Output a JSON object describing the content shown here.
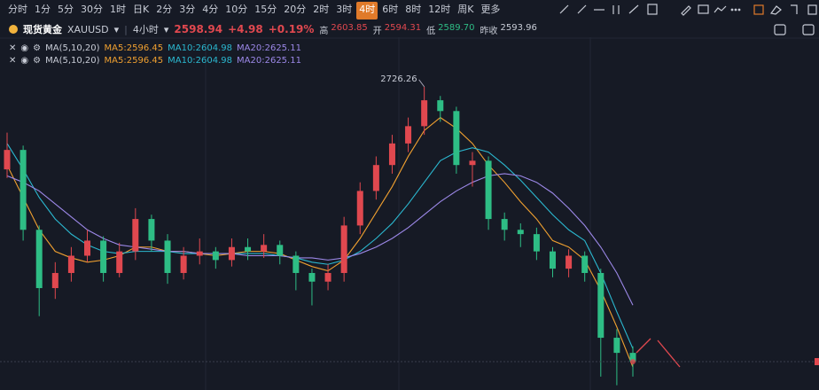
{
  "toolbar": {
    "items": [
      "分时",
      "1分",
      "5分",
      "30分",
      "1时",
      "日K",
      "2分",
      "3分",
      "4分",
      "10分",
      "15分",
      "20分",
      "2时",
      "3时",
      "4时",
      "6时",
      "8时",
      "12时",
      "周K",
      "更多"
    ],
    "active": 14
  },
  "header": {
    "name": "现货黄金",
    "symbol": "XAUUSD",
    "period": "4小时",
    "price": "2598.94",
    "change": "+4.98",
    "change_pct": "+0.19%",
    "stats": [
      {
        "label": "高",
        "value": "2603.85",
        "color": "#e0484f"
      },
      {
        "label": "开",
        "value": "2594.31",
        "color": "#e0484f"
      },
      {
        "label": "低",
        "value": "2589.70",
        "color": "#2ebd85"
      },
      {
        "label": "昨收",
        "value": "2593.96",
        "color": "#c8ccd6"
      }
    ]
  },
  "indicators": [
    {
      "name": "MA(5,10,20)",
      "items": [
        "MA5:2596.45",
        "MA10:2604.98",
        "MA20:2625.11"
      ]
    },
    {
      "name": "MA(5,10,20)",
      "items": [
        "MA5:2596.45",
        "MA10:2604.98",
        "MA20:2625.11"
      ]
    }
  ],
  "chart_data": {
    "type": "candlestick",
    "ylim": [
      2585.8,
      2749.2
    ],
    "up_color": "#e0484f",
    "down_color": "#2ebd85",
    "open": [
      2688,
      2697,
      2660,
      2633,
      2640,
      2648,
      2655,
      2640,
      2650,
      2665,
      2655,
      2640,
      2648,
      2650,
      2646,
      2652,
      2650,
      2653,
      2648,
      2640,
      2636,
      2640,
      2662,
      2678,
      2690,
      2700,
      2708,
      2720,
      2715,
      2690,
      2692,
      2665,
      2660,
      2658,
      2650,
      2642,
      2648,
      2640,
      2610,
      2603
    ],
    "high": [
      2705,
      2699,
      2662,
      2645,
      2652,
      2660,
      2657,
      2654,
      2670,
      2667,
      2658,
      2652,
      2656,
      2652,
      2656,
      2656,
      2658,
      2655,
      2650,
      2642,
      2644,
      2666,
      2682,
      2694,
      2704,
      2712,
      2726.26,
      2722,
      2717,
      2696,
      2694,
      2668,
      2663,
      2661,
      2652,
      2651,
      2650,
      2642,
      2614,
      2606
    ],
    "low": [
      2684,
      2655,
      2620,
      2628,
      2636,
      2645,
      2636,
      2638,
      2646,
      2650,
      2635,
      2637,
      2644,
      2642,
      2643,
      2646,
      2647,
      2644,
      2632,
      2625,
      2632,
      2636,
      2658,
      2674,
      2686,
      2696,
      2704,
      2710,
      2686,
      2680,
      2660,
      2655,
      2652,
      2646,
      2638,
      2638,
      2636,
      2592,
      2588,
      2592
    ],
    "close": [
      2697,
      2660,
      2633,
      2640,
      2648,
      2655,
      2640,
      2650,
      2665,
      2655,
      2640,
      2648,
      2650,
      2646,
      2652,
      2650,
      2653,
      2648,
      2640,
      2636,
      2640,
      2662,
      2678,
      2690,
      2700,
      2708,
      2720,
      2715,
      2690,
      2692,
      2665,
      2660,
      2658,
      2650,
      2642,
      2648,
      2640,
      2610,
      2603,
      2598.94
    ],
    "series": [
      {
        "name": "MA5",
        "color": "#f0a030",
        "values": [
          2690,
          2675,
          2660,
          2650,
          2647,
          2645,
          2646,
          2648,
          2652,
          2652,
          2650,
          2650,
          2649,
          2648,
          2649,
          2650,
          2650,
          2649,
          2646,
          2643,
          2641,
          2646,
          2656,
          2668,
          2680,
          2694,
          2706,
          2712,
          2707,
          2700,
          2690,
          2682,
          2673,
          2665,
          2655,
          2652,
          2646,
          2632,
          2615,
          2596.45
        ]
      },
      {
        "name": "MA10",
        "color": "#2bb8d0",
        "values": [
          2700,
          2688,
          2675,
          2665,
          2658,
          2653,
          2650,
          2649,
          2650,
          2650,
          2650,
          2649,
          2649,
          2649,
          2649,
          2649,
          2649,
          2648,
          2647,
          2645,
          2644,
          2646,
          2650,
          2656,
          2663,
          2672,
          2682,
          2692,
          2696,
          2698,
          2696,
          2690,
          2683,
          2675,
          2667,
          2660,
          2655,
          2640,
          2622,
          2604.98
        ]
      },
      {
        "name": "MA20",
        "color": "#9c88e8",
        "values": [
          2685,
          2682,
          2678,
          2672,
          2666,
          2660,
          2656,
          2653,
          2652,
          2651,
          2650,
          2650,
          2649,
          2649,
          2649,
          2648,
          2648,
          2648,
          2647,
          2647,
          2646,
          2647,
          2649,
          2652,
          2656,
          2661,
          2667,
          2673,
          2678,
          2682,
          2685,
          2686,
          2685,
          2682,
          2677,
          2670,
          2662,
          2652,
          2640,
          2625.11
        ]
      }
    ]
  }
}
